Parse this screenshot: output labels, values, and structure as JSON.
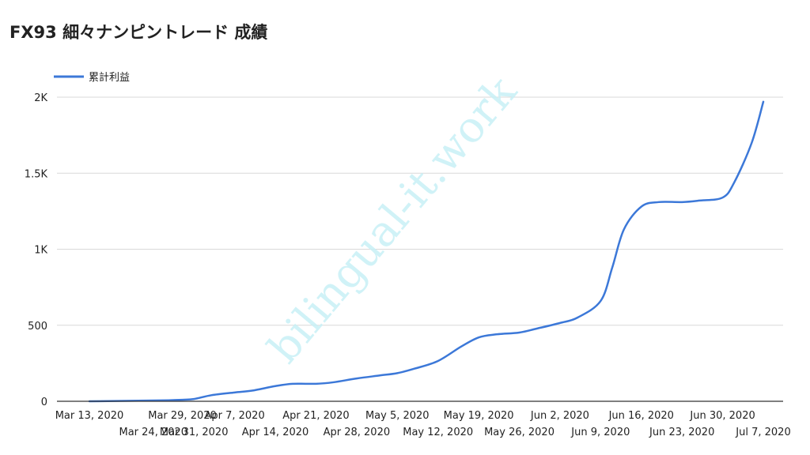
{
  "chart_data": {
    "type": "line",
    "title": "FX93 細々ナンピントレード 成績",
    "xlabel": "",
    "ylabel": "",
    "legend_position": "top-left",
    "grid": true,
    "ylim": [
      0,
      2000
    ],
    "y_ticks": [
      {
        "value": 0,
        "label": "0"
      },
      {
        "value": 500,
        "label": "500"
      },
      {
        "value": 1000,
        "label": "1K"
      },
      {
        "value": 1500,
        "label": "1.5K"
      },
      {
        "value": 2000,
        "label": "2K"
      }
    ],
    "x_ticks": [
      {
        "date": "2020-03-13",
        "label": "Mar 13, 2020",
        "row": 1
      },
      {
        "date": "2020-03-24",
        "label": "Mar 24, 2020",
        "row": 2
      },
      {
        "date": "2020-03-29",
        "label": "Mar 29, 2020",
        "row": 1
      },
      {
        "date": "2020-03-31",
        "label": "Mar 31, 2020",
        "row": 2
      },
      {
        "date": "2020-04-07",
        "label": "Apr 7, 2020",
        "row": 1
      },
      {
        "date": "2020-04-14",
        "label": "Apr 14, 2020",
        "row": 2
      },
      {
        "date": "2020-04-21",
        "label": "Apr 21, 2020",
        "row": 1
      },
      {
        "date": "2020-04-28",
        "label": "Apr 28, 2020",
        "row": 2
      },
      {
        "date": "2020-05-05",
        "label": "May 5, 2020",
        "row": 1
      },
      {
        "date": "2020-05-12",
        "label": "May 12, 2020",
        "row": 2
      },
      {
        "date": "2020-05-19",
        "label": "May 19, 2020",
        "row": 1
      },
      {
        "date": "2020-05-26",
        "label": "May 26, 2020",
        "row": 2
      },
      {
        "date": "2020-06-02",
        "label": "Jun 2, 2020",
        "row": 1
      },
      {
        "date": "2020-06-09",
        "label": "Jun 9, 2020",
        "row": 2
      },
      {
        "date": "2020-06-16",
        "label": "Jun 16, 2020",
        "row": 1
      },
      {
        "date": "2020-06-23",
        "label": "Jun 23, 2020",
        "row": 2
      },
      {
        "date": "2020-06-30",
        "label": "Jun 30, 2020",
        "row": 1
      },
      {
        "date": "2020-07-07",
        "label": "Jul 7, 2020",
        "row": 2
      }
    ],
    "series": [
      {
        "name": "累計利益",
        "color": "#3c78d8",
        "points": [
          {
            "x": "2020-03-13",
            "y": 0
          },
          {
            "x": "2020-03-24",
            "y": 5
          },
          {
            "x": "2020-03-29",
            "y": 10
          },
          {
            "x": "2020-03-31",
            "y": 15
          },
          {
            "x": "2020-04-03",
            "y": 40
          },
          {
            "x": "2020-04-07",
            "y": 58
          },
          {
            "x": "2020-04-10",
            "y": 70
          },
          {
            "x": "2020-04-14",
            "y": 100
          },
          {
            "x": "2020-04-17",
            "y": 115
          },
          {
            "x": "2020-04-21",
            "y": 115
          },
          {
            "x": "2020-04-24",
            "y": 125
          },
          {
            "x": "2020-04-28",
            "y": 150
          },
          {
            "x": "2020-05-02",
            "y": 170
          },
          {
            "x": "2020-05-05",
            "y": 185
          },
          {
            "x": "2020-05-08",
            "y": 215
          },
          {
            "x": "2020-05-12",
            "y": 265
          },
          {
            "x": "2020-05-16",
            "y": 360
          },
          {
            "x": "2020-05-19",
            "y": 420
          },
          {
            "x": "2020-05-22",
            "y": 440
          },
          {
            "x": "2020-05-26",
            "y": 452
          },
          {
            "x": "2020-05-29",
            "y": 478
          },
          {
            "x": "2020-06-02",
            "y": 515
          },
          {
            "x": "2020-06-05",
            "y": 550
          },
          {
            "x": "2020-06-09",
            "y": 660
          },
          {
            "x": "2020-06-11",
            "y": 880
          },
          {
            "x": "2020-06-13",
            "y": 1130
          },
          {
            "x": "2020-06-16",
            "y": 1280
          },
          {
            "x": "2020-06-19",
            "y": 1310
          },
          {
            "x": "2020-06-23",
            "y": 1310
          },
          {
            "x": "2020-06-26",
            "y": 1320
          },
          {
            "x": "2020-06-30",
            "y": 1340
          },
          {
            "x": "2020-07-02",
            "y": 1440
          },
          {
            "x": "2020-07-05",
            "y": 1700
          },
          {
            "x": "2020-07-07",
            "y": 1970
          }
        ]
      }
    ]
  },
  "watermark": {
    "text": "bilingual-it.work",
    "color": "#c8f0f6"
  }
}
